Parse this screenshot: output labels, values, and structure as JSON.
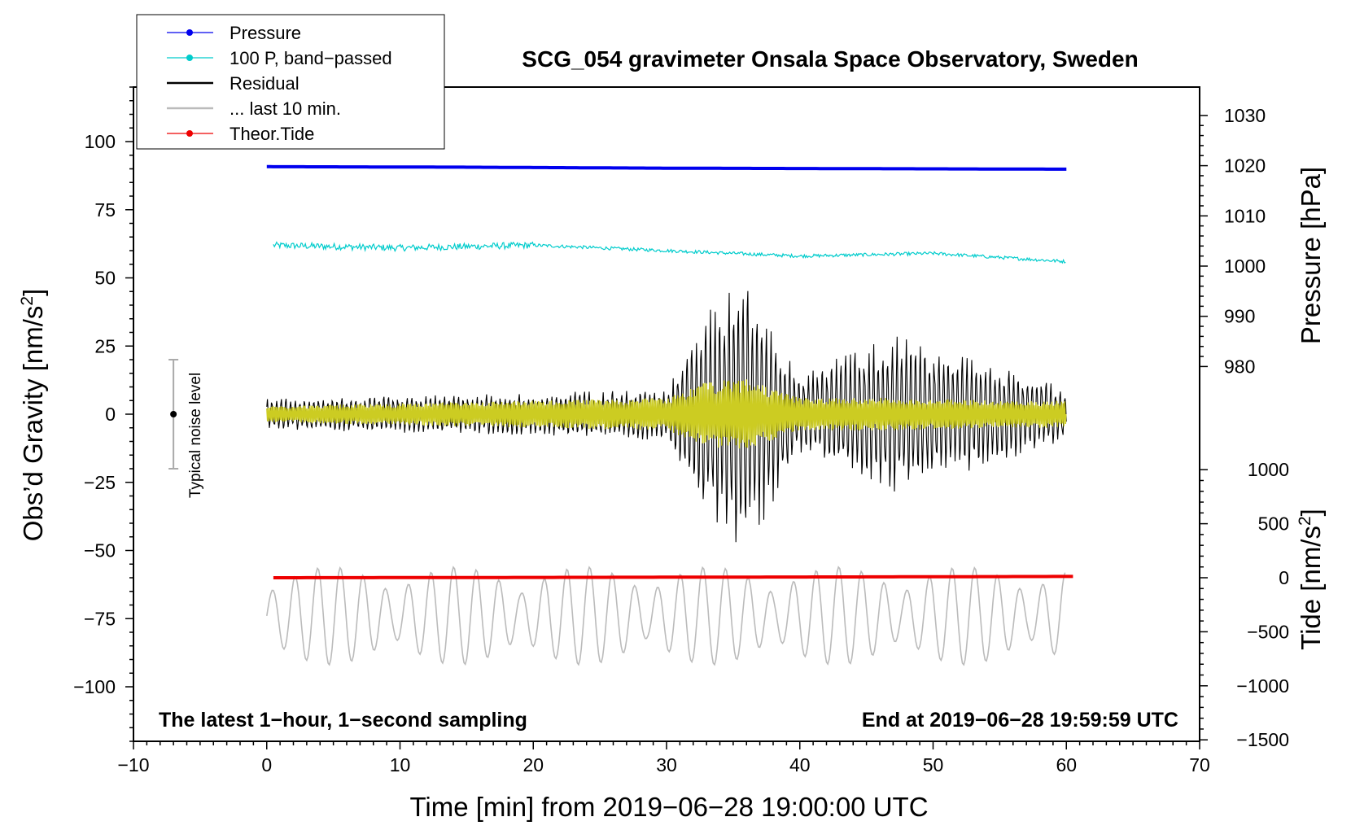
{
  "chart_data": {
    "type": "line",
    "title": "SCG_054 gravimeter Onsala Space Observatory, Sweden",
    "xlabel": "Time [min] from 2019−06−28 19:00:00 UTC",
    "ylabel_left": "Obs’d Gravity [nm/s",
    "ylabel_left_sup": "2",
    "ylabel_left_close": "]",
    "ylabel_right_pressure": "Pressure [hPa]",
    "ylabel_right_tide": "Tide [nm/s",
    "ylabel_right_tide_sup": "2",
    "ylabel_right_tide_close": "]",
    "xlim": [
      -10,
      70
    ],
    "ylim_left": [
      -120,
      120
    ],
    "xticks": [
      "−10",
      "0",
      "10",
      "20",
      "30",
      "40",
      "50",
      "60",
      "70"
    ],
    "yticks_left": [
      "100",
      "75",
      "50",
      "25",
      "0",
      "−25",
      "−50",
      "−75",
      "−100"
    ],
    "yticks_pressure": [
      "1030",
      "1020",
      "1010",
      "1000",
      "990",
      "980"
    ],
    "yticks_tide": [
      "1000",
      "500",
      "0",
      "−500",
      "−1000",
      "−1500"
    ],
    "legend": [
      {
        "label": "Pressure",
        "color": "#0000ee",
        "marker": true
      },
      {
        "label": "100 P, band−passed",
        "color": "#00cccc",
        "marker": true
      },
      {
        "label": "Residual",
        "color": "#000000",
        "marker": false
      },
      {
        "label": "... last 10 min.",
        "color": "#bbbbbb",
        "marker": false
      },
      {
        "label": "Theor.Tide",
        "color": "#ee0000",
        "marker": true
      }
    ],
    "annotations": {
      "left": "The latest 1−hour, 1−second sampling",
      "right": "End at 2019−06−28 19:59:59 UTC",
      "noise": "Typical noise level"
    },
    "noise_bar": {
      "x": -7,
      "center": 0,
      "halfwidth": 20
    },
    "series": [
      {
        "name": "Pressure",
        "color": "#0000ee",
        "unit": "hPa",
        "x": [
          0,
          15,
          30,
          45,
          60
        ],
        "y": [
          1019.8,
          1019.7,
          1019.5,
          1019.4,
          1019.3
        ]
      },
      {
        "name": "100 P, band-passed",
        "color": "#00cccc",
        "unit": "nm/s2 (left axis)",
        "x": [
          0,
          10,
          20,
          30,
          40,
          50,
          60
        ],
        "y": [
          62,
          61,
          62,
          60,
          58,
          59,
          56
        ]
      },
      {
        "name": "Residual",
        "color": "#000000",
        "unit": "nm/s2",
        "x": [
          0,
          10,
          20,
          30,
          33,
          36,
          40,
          47,
          55,
          60
        ],
        "y_envelope": [
          6,
          7,
          8,
          10,
          38,
          52,
          15,
          30,
          18,
          10
        ]
      },
      {
        "name": "Residual (filtered)",
        "color": "#cccc22",
        "unit": "nm/s2",
        "x": [
          0,
          10,
          20,
          30,
          33,
          36,
          40,
          47,
          55,
          60
        ],
        "y_envelope": [
          3,
          4,
          5,
          6,
          12,
          13,
          6,
          6,
          5,
          5
        ]
      },
      {
        "name": "... last 10 min.",
        "color": "#bbbbbb",
        "unit": "nm/s2",
        "x": [
          0,
          60
        ],
        "y_range": [
          -92,
          -56
        ]
      },
      {
        "name": "Theor.Tide",
        "color": "#ee0000",
        "unit": "nm/s2 (tide axis)",
        "x": [
          0,
          15,
          30,
          45,
          60
        ],
        "y": [
          0,
          2,
          5,
          8,
          12
        ]
      }
    ]
  }
}
